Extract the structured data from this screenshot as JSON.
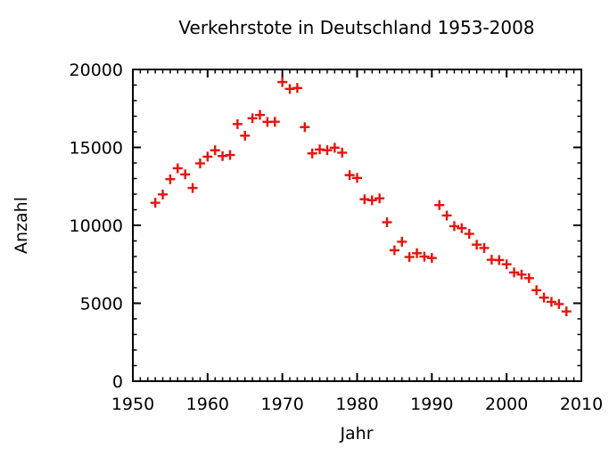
{
  "window": {
    "background": "#ffffff",
    "frame_color": "#000000",
    "text_color": "#000000"
  },
  "chart_data": {
    "type": "scatter",
    "title": "Verkehrstote in Deutschland 1953-2008",
    "xlabel": "Jahr",
    "ylabel": "Anzahl",
    "xlim": [
      1950,
      2010
    ],
    "ylim": [
      0,
      20000
    ],
    "x_major_ticks": [
      1950,
      1960,
      1970,
      1980,
      1990,
      2000,
      2010
    ],
    "x_minor_step": 1,
    "y_major_ticks": [
      0,
      5000,
      10000,
      15000,
      20000
    ],
    "y_minor_step": 1000,
    "grid": false,
    "legend_position": "none",
    "marker": {
      "shape": "plus",
      "color": "#e8130b",
      "size": 11,
      "stroke_width": 2.4
    },
    "series": [
      {
        "name": "Verkehrstote",
        "x": [
          1953,
          1954,
          1955,
          1956,
          1957,
          1958,
          1959,
          1960,
          1961,
          1962,
          1963,
          1964,
          1965,
          1966,
          1967,
          1968,
          1969,
          1970,
          1971,
          1972,
          1973,
          1974,
          1975,
          1976,
          1977,
          1978,
          1979,
          1980,
          1981,
          1982,
          1983,
          1984,
          1985,
          1986,
          1987,
          1988,
          1989,
          1990,
          1991,
          1992,
          1993,
          1994,
          1995,
          1996,
          1997,
          1998,
          1999,
          2000,
          2001,
          2002,
          2003,
          2004,
          2005,
          2006,
          2007,
          2008
        ],
        "values": [
          11449,
          11981,
          12958,
          13660,
          13269,
          12396,
          13974,
          14406,
          14815,
          14445,
          14513,
          16494,
          15753,
          16868,
          17084,
          16636,
          16646,
          19193,
          18753,
          18811,
          16302,
          14614,
          14870,
          14820,
          14978,
          14662,
          13222,
          13041,
          11674,
          11608,
          11732,
          10199,
          8400,
          8948,
          7967,
          8213,
          7995,
          7906,
          11300,
          10631,
          9949,
          9814,
          9454,
          8758,
          8549,
          7792,
          7772,
          7503,
          6977,
          6842,
          6613,
          5842,
          5361,
          5091,
          4949,
          4477
        ]
      }
    ]
  }
}
